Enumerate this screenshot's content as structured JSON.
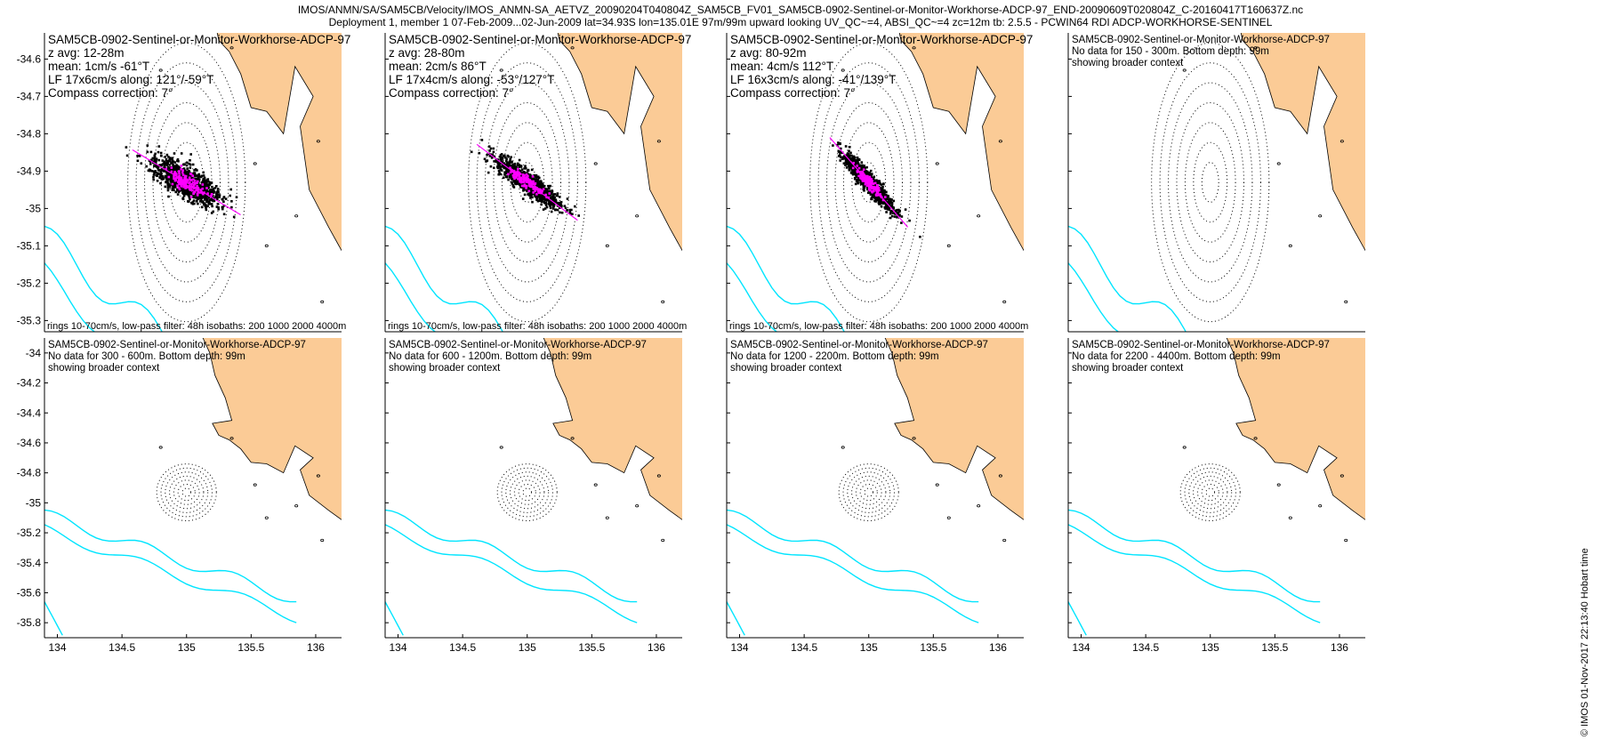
{
  "header": {
    "line1": "IMOS/ANMN/SA/SAM5CB/Velocity/IMOS_ANMN-SA_AETVZ_20090204T040804Z_SAM5CB_FV01_SAM5CB-0902-Sentinel-or-Monitor-Workhorse-ADCP-97_END-20090609T020804Z_C-20160417T160637Z.nc",
    "line2": "Deployment 1, member 1 07-Feb-2009...02-Jun-2009 lat=34.93S lon=135.01E 97m/99m upward looking UV_QC~=4, ABSI_QC~=4 zc=12m tb: 2.5.5 - PCWIN64 RDI ADCP-WORKHORSE-SENTINEL"
  },
  "footer": "© IMOS 01-Nov-2017 22:13:40 Hobart time",
  "colors": {
    "land": "#fbcb96",
    "isobath": "#00e5ff",
    "scatter": "#000000",
    "lowpass": "#ff00ff",
    "rings": "#000000"
  },
  "chart_data": {
    "type": "scatter",
    "axes": {
      "top_row": {
        "ylim": [
          -35.33,
          -34.53
        ],
        "yticks": [
          -34.6,
          -34.7,
          -34.8,
          -34.9,
          -35.0,
          -35.1,
          -35.2,
          -35.3
        ],
        "ytick_labels": [
          "-34.6",
          "-34.7",
          "-34.8",
          "-34.9",
          "-35",
          "-35.1",
          "-35.2",
          "-35.3"
        ]
      },
      "bottom_row": {
        "ylim": [
          -35.9,
          -33.9
        ],
        "yticks": [
          -34.0,
          -34.2,
          -34.4,
          -34.6,
          -34.8,
          -35.0,
          -35.2,
          -35.4,
          -35.6,
          -35.8
        ],
        "ytick_labels": [
          "-34",
          "-34.2",
          "-34.4",
          "-34.6",
          "-34.8",
          "-35",
          "-35.2",
          "-35.4",
          "-35.6",
          "-35.8"
        ]
      },
      "xlim": [
        133.9,
        136.2
      ],
      "xticks": [
        134,
        134.5,
        135,
        135.5,
        136
      ],
      "xtick_labels": [
        "134",
        "134.5",
        "135",
        "135.5",
        "136"
      ]
    },
    "panels": [
      {
        "title": "SAM5CB-0902-Sentinel-or-Monitor-Workhorse-ADCP-97",
        "info": [
          "z avg: 12-28m",
          "mean: 1cm/s -61°T",
          "LF 17x6cm/s along: 121°/-59°T",
          "Compass correction: 7°"
        ],
        "footnote": "rings 10-70cm/s, low-pass filter: 48h isobaths: 200 1000 2000 4000m",
        "has_data": true,
        "cloud": {
          "center_lat": -34.93,
          "center_lon": 135.0,
          "major_axis_deg_T": 121,
          "major_cm_s": 17,
          "minor_cm_s": 6
        }
      },
      {
        "title": "SAM5CB-0902-Sentinel-or-Monitor-Workhorse-ADCP-97",
        "info": [
          "z avg: 28-80m",
          "mean: 2cm/s 86°T",
          "LF 17x4cm/s along: -53°/127°T",
          "Compass correction: 7°"
        ],
        "footnote": "rings 10-70cm/s, low-pass filter: 48h isobaths: 200 1000 2000 4000m",
        "has_data": true,
        "cloud": {
          "center_lat": -34.93,
          "center_lon": 135.0,
          "major_axis_deg_T": 127,
          "major_cm_s": 17,
          "minor_cm_s": 4
        }
      },
      {
        "title": "SAM5CB-0902-Sentinel-or-Monitor-Workhorse-ADCP-97",
        "info": [
          "z avg: 80-92m",
          "mean: 4cm/s 112°T",
          "LF 16x3cm/s along: -41°/139°T",
          "Compass correction: 7°"
        ],
        "footnote": "rings 10-70cm/s, low-pass filter: 48h isobaths: 200 1000 2000 4000m",
        "has_data": true,
        "cloud": {
          "center_lat": -34.93,
          "center_lon": 135.0,
          "major_axis_deg_T": 139,
          "major_cm_s": 16,
          "minor_cm_s": 3
        }
      },
      {
        "title": "SAM5CB-0902-Sentinel-or-Monitor-Workhorse-ADCP-97",
        "info": [
          "No data for 150 - 300m. Bottom depth: 99m",
          "showing broader context"
        ],
        "footnote": "",
        "has_data": false
      },
      {
        "title": "SAM5CB-0902-Sentinel-or-Monitor-Workhorse-ADCP-97",
        "info": [
          "No data for 300 - 600m. Bottom depth: 99m",
          "showing broader context"
        ],
        "footnote": "",
        "has_data": false
      },
      {
        "title": "SAM5CB-0902-Sentinel-or-Monitor-Workhorse-ADCP-97",
        "info": [
          "No data for 600 - 1200m. Bottom depth: 99m",
          "showing broader context"
        ],
        "footnote": "",
        "has_data": false
      },
      {
        "title": "SAM5CB-0902-Sentinel-or-Monitor-Workhorse-ADCP-97",
        "info": [
          "No data for 1200 - 2200m. Bottom depth: 99m",
          "showing broader context"
        ],
        "footnote": "",
        "has_data": false
      },
      {
        "title": "SAM5CB-0902-Sentinel-or-Monitor-Workhorse-ADCP-97",
        "info": [
          "No data for 2200 - 4400m. Bottom depth: 99m",
          "showing broader context"
        ],
        "footnote": "",
        "has_data": false
      }
    ]
  }
}
